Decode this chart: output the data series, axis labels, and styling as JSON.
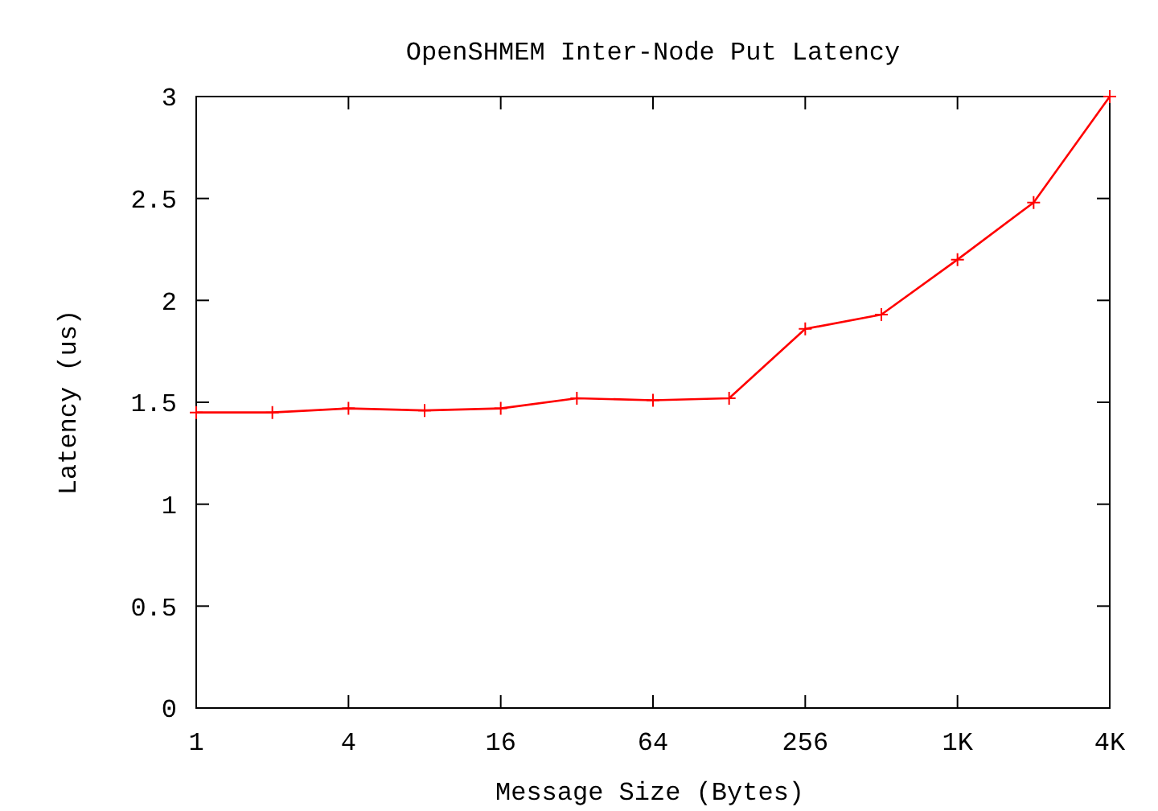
{
  "chart_data": {
    "type": "line",
    "title": "OpenSHMEM Inter-Node Put Latency",
    "xlabel": "Message Size (Bytes)",
    "ylabel": "Latency (us)",
    "x": [
      1,
      2,
      4,
      8,
      16,
      32,
      64,
      128,
      256,
      512,
      1024,
      2048,
      4096
    ],
    "series": [
      {
        "color": "#ff0000",
        "values": [
          1.45,
          1.45,
          1.47,
          1.46,
          1.47,
          1.52,
          1.51,
          1.52,
          1.86,
          1.93,
          2.2,
          2.48,
          3.0
        ]
      }
    ],
    "log": "x",
    "xlim": [
      1,
      4096
    ],
    "xticks": [
      1,
      4,
      16,
      64,
      256,
      {
        "value": 1024,
        "label": "1K"
      },
      {
        "value": 4096,
        "label": "4K"
      }
    ],
    "ylim": [
      0,
      3
    ],
    "yticks": [
      0,
      0.5,
      1,
      1.5,
      2,
      2.5,
      3
    ],
    "marker": "cross",
    "line_style": "solid",
    "grid": false
  }
}
